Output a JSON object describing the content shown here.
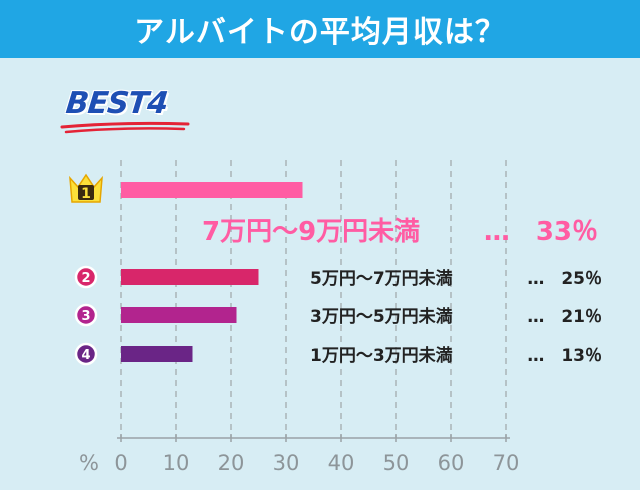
{
  "title": "アルバイトの平均月収は？",
  "badge": "BEST4",
  "colors": {
    "header": "#20a6e4",
    "panel": "#d7edf4",
    "rank1": "#ff5ca3",
    "rank2": "#d8266a",
    "rank3": "#b2248e",
    "rank4": "#6a2586",
    "crown": "#fbe03a",
    "underline": "#e42336"
  },
  "chart_data": {
    "type": "bar",
    "orientation": "horizontal",
    "categories": [
      "7万円～9万円未満",
      "5万円～7万円未満",
      "3万円～5万円未満",
      "1万円～3万円未満"
    ],
    "ranks": [
      "1",
      "2",
      "3",
      "4"
    ],
    "values": [
      33,
      25,
      21,
      13
    ],
    "value_labels": [
      "…　33％",
      "…　25％",
      "…　21％",
      "…　13％"
    ],
    "xlim": [
      0,
      70
    ],
    "xticks": [
      "0",
      "10",
      "20",
      "30",
      "40",
      "50",
      "60",
      "70"
    ],
    "x_unit": "%",
    "grid": "vertical dashed"
  }
}
